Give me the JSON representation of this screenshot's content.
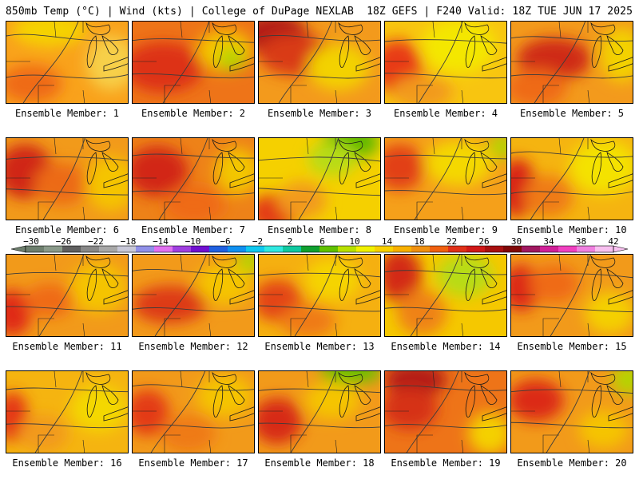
{
  "header": {
    "left": "850mb Temp (°C) | Wind (kts) | College of DuPage NEXLAB",
    "right": "18Z GEFS | F240 Valid: 18Z TUE JUN 17 2025"
  },
  "member_label_prefix": "Ensemble Member: ",
  "members": [
    {
      "id": 1,
      "base": "#f9a21b",
      "spots": [
        [
          "#f5d300",
          0.35,
          0.1,
          0.5,
          0.25
        ],
        [
          "#ef6a16",
          0.2,
          0.75,
          0.4,
          0.3
        ],
        [
          "#f7d04a",
          0.85,
          0.5,
          0.3,
          0.5
        ]
      ]
    },
    {
      "id": 2,
      "base": "#ee7418",
      "spots": [
        [
          "#dd3216",
          0.25,
          0.55,
          0.55,
          0.45
        ],
        [
          "#f5c400",
          0.75,
          0.35,
          0.35,
          0.35
        ],
        [
          "#b2d600",
          0.8,
          0.45,
          0.12,
          0.12
        ]
      ]
    },
    {
      "id": 3,
      "base": "#f39a1c",
      "spots": [
        [
          "#b21a14",
          0.12,
          0.15,
          0.45,
          0.35
        ],
        [
          "#d93a16",
          0.3,
          0.4,
          0.5,
          0.35
        ],
        [
          "#f3d200",
          0.65,
          0.55,
          0.4,
          0.4
        ]
      ]
    },
    {
      "id": 4,
      "base": "#f8c510",
      "spots": [
        [
          "#e83a16",
          0.1,
          0.55,
          0.3,
          0.5
        ],
        [
          "#f4e700",
          0.6,
          0.3,
          0.5,
          0.5
        ],
        [
          "#f29a1a",
          0.3,
          0.85,
          0.4,
          0.25
        ]
      ]
    },
    {
      "id": 5,
      "base": "#f39a1c",
      "spots": [
        [
          "#cf2a16",
          0.35,
          0.45,
          0.5,
          0.35
        ],
        [
          "#f3d200",
          0.9,
          0.4,
          0.25,
          0.5
        ],
        [
          "#ef6a16",
          0.2,
          0.8,
          0.4,
          0.3
        ]
      ]
    },
    {
      "id": 6,
      "base": "#f29a1a",
      "spots": [
        [
          "#d02516",
          0.15,
          0.4,
          0.35,
          0.5
        ],
        [
          "#ec6a16",
          0.45,
          0.55,
          0.35,
          0.35
        ],
        [
          "#f5c400",
          0.85,
          0.55,
          0.3,
          0.5
        ]
      ]
    },
    {
      "id": 7,
      "base": "#ee8218",
      "spots": [
        [
          "#d22816",
          0.2,
          0.4,
          0.4,
          0.45
        ],
        [
          "#f3c600",
          0.85,
          0.4,
          0.25,
          0.4
        ],
        [
          "#ef6a16",
          0.5,
          0.8,
          0.4,
          0.3
        ]
      ]
    },
    {
      "id": 8,
      "base": "#f5d000",
      "spots": [
        [
          "#5db800",
          0.75,
          0.05,
          0.35,
          0.25
        ],
        [
          "#b7dc18",
          0.6,
          0.25,
          0.3,
          0.25
        ],
        [
          "#e33a16",
          0.12,
          0.9,
          0.3,
          0.3
        ],
        [
          "#f29a1a",
          0.35,
          0.75,
          0.3,
          0.3
        ]
      ]
    },
    {
      "id": 9,
      "base": "#f5a01a",
      "spots": [
        [
          "#e24016",
          0.12,
          0.35,
          0.3,
          0.4
        ],
        [
          "#f4d800",
          0.6,
          0.3,
          0.45,
          0.4
        ],
        [
          "#b2d600",
          0.95,
          0.1,
          0.1,
          0.15
        ]
      ]
    },
    {
      "id": 10,
      "base": "#f5b410",
      "spots": [
        [
          "#d82216",
          0.05,
          0.6,
          0.2,
          0.55
        ],
        [
          "#f4e200",
          0.75,
          0.35,
          0.45,
          0.5
        ],
        [
          "#ef7a16",
          0.3,
          0.7,
          0.3,
          0.35
        ]
      ]
    },
    {
      "id": 11,
      "base": "#f29a1a",
      "spots": [
        [
          "#e02c16",
          0.05,
          0.7,
          0.2,
          0.4
        ],
        [
          "#f5c400",
          0.75,
          0.4,
          0.35,
          0.45
        ],
        [
          "#ef6a16",
          0.35,
          0.55,
          0.3,
          0.25
        ]
      ]
    },
    {
      "id": 12,
      "base": "#f29a1a",
      "spots": [
        [
          "#dd3a16",
          0.3,
          0.6,
          0.5,
          0.3
        ],
        [
          "#f5c400",
          0.75,
          0.35,
          0.35,
          0.35
        ],
        [
          "#b2d600",
          0.95,
          0.08,
          0.1,
          0.12
        ]
      ]
    },
    {
      "id": 13,
      "base": "#f5b010",
      "spots": [
        [
          "#e34416",
          0.15,
          0.55,
          0.3,
          0.35
        ],
        [
          "#f5d400",
          0.6,
          0.3,
          0.35,
          0.35
        ],
        [
          "#ef7a16",
          0.4,
          0.8,
          0.35,
          0.25
        ]
      ]
    },
    {
      "id": 14,
      "base": "#f5c800",
      "spots": [
        [
          "#d32a16",
          0.12,
          0.25,
          0.25,
          0.5
        ],
        [
          "#b7dc18",
          0.65,
          0.25,
          0.35,
          0.35
        ],
        [
          "#ef8216",
          0.3,
          0.7,
          0.3,
          0.4
        ]
      ]
    },
    {
      "id": 15,
      "base": "#f29a1a",
      "spots": [
        [
          "#dc2816",
          0.08,
          0.4,
          0.2,
          0.4
        ],
        [
          "#f4d000",
          0.8,
          0.7,
          0.3,
          0.35
        ],
        [
          "#ef6a16",
          0.35,
          0.35,
          0.3,
          0.3
        ]
      ]
    },
    {
      "id": 16,
      "base": "#f5b410",
      "spots": [
        [
          "#e43416",
          0.05,
          0.55,
          0.15,
          0.45
        ],
        [
          "#f4d800",
          0.75,
          0.45,
          0.35,
          0.4
        ],
        [
          "#f29a1a",
          0.3,
          0.75,
          0.3,
          0.3
        ]
      ]
    },
    {
      "id": 17,
      "base": "#f29a1a",
      "spots": [
        [
          "#e33a16",
          0.12,
          0.5,
          0.25,
          0.4
        ],
        [
          "#f5c400",
          0.75,
          0.3,
          0.35,
          0.35
        ],
        [
          "#ef7a16",
          0.45,
          0.75,
          0.35,
          0.3
        ]
      ]
    },
    {
      "id": 18,
      "base": "#f29a1a",
      "spots": [
        [
          "#6cbf00",
          0.75,
          0.0,
          0.4,
          0.15
        ],
        [
          "#d72a16",
          0.15,
          0.6,
          0.3,
          0.4
        ],
        [
          "#f5c400",
          0.6,
          0.35,
          0.35,
          0.3
        ]
      ]
    },
    {
      "id": 19,
      "base": "#ee7418",
      "spots": [
        [
          "#b41a14",
          0.25,
          0.1,
          0.4,
          0.25
        ],
        [
          "#d63016",
          0.2,
          0.45,
          0.35,
          0.35
        ],
        [
          "#f4d000",
          0.85,
          0.75,
          0.25,
          0.35
        ]
      ]
    },
    {
      "id": 20,
      "base": "#f29a1a",
      "spots": [
        [
          "#dc2c16",
          0.2,
          0.35,
          0.35,
          0.35
        ],
        [
          "#b2d600",
          0.95,
          0.1,
          0.15,
          0.2
        ],
        [
          "#f5c400",
          0.75,
          0.7,
          0.3,
          0.3
        ]
      ]
    }
  ],
  "colorbar": {
    "ticks": [
      "−30",
      "−26",
      "−22",
      "−18",
      "−14",
      "−10",
      "−6",
      "−2",
      "2",
      "6",
      "10",
      "14",
      "18",
      "22",
      "26",
      "30",
      "34",
      "38",
      "42"
    ],
    "colors": [
      "#6e7f6e",
      "#8a9a8a",
      "#5f5f5f",
      "#888888",
      "#a8a8a8",
      "#c8c8d8",
      "#9090e8",
      "#e070f0",
      "#a040e0",
      "#7010d0",
      "#2060e0",
      "#1090f0",
      "#10c8f0",
      "#30e8e0",
      "#10c8a0",
      "#10a030",
      "#60c000",
      "#b8e000",
      "#f0f000",
      "#f8d000",
      "#f8b000",
      "#f09010",
      "#f06010",
      "#e03018",
      "#d01818",
      "#a81010",
      "#800808",
      "#a01860",
      "#d02098",
      "#f040c0",
      "#f080e0",
      "#f8c0f0"
    ]
  }
}
